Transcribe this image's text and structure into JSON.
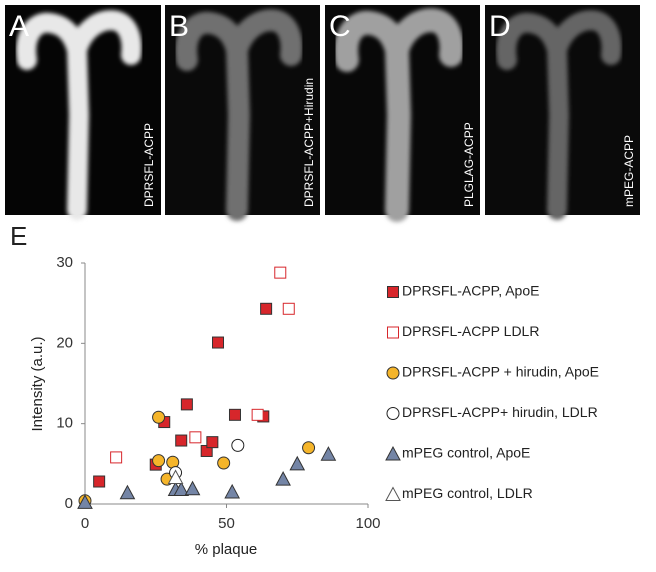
{
  "panels": [
    {
      "letter": "A",
      "label": "DPRSFL-ACPP"
    },
    {
      "letter": "B",
      "label": "DPRSFL-ACPP+Hirudin"
    },
    {
      "letter": "C",
      "label": "PLGLAG-ACPP"
    },
    {
      "letter": "D",
      "label": "mPEG-ACPP"
    }
  ],
  "chart_data": {
    "type": "scatter",
    "panel_letter": "E",
    "x_label": "% plaque",
    "y_label": "Intensity (a.u.)",
    "xlim": [
      0,
      100
    ],
    "ylim": [
      0,
      30
    ],
    "xticks": [
      0,
      50,
      100
    ],
    "yticks": [
      0,
      10,
      20,
      30
    ],
    "legend": "right",
    "grid": false,
    "series": [
      {
        "name": "DPRSFL-ACPP, ApoE",
        "marker": "square",
        "hollow": false,
        "color": "#d7262b",
        "x": [
          5,
          25,
          28,
          34,
          36,
          43,
          45,
          47,
          53,
          63,
          64
        ],
        "values": [
          2.8,
          4.9,
          10.2,
          7.9,
          12.4,
          6.6,
          7.7,
          20.1,
          11.1,
          10.9,
          24.3
        ]
      },
      {
        "name": "DPRSFL-ACPP LDLR",
        "marker": "square",
        "hollow": true,
        "color": "#d7262b",
        "x": [
          11,
          39,
          61,
          69,
          72
        ],
        "values": [
          5.8,
          8.3,
          11.1,
          28.8,
          24.3
        ]
      },
      {
        "name": "DPRSFL-ACPP + hirudin, ApoE",
        "marker": "circle",
        "hollow": false,
        "color": "#f5b52a",
        "x": [
          0,
          26,
          26,
          29,
          31,
          49,
          79
        ],
        "values": [
          0.4,
          10.8,
          5.4,
          3.1,
          5.2,
          5.1,
          7.0
        ]
      },
      {
        "name": "DPRSFL-ACPP+ hirudin, LDLR",
        "marker": "circle",
        "hollow": true,
        "color": "#222222",
        "x": [
          32,
          54
        ],
        "values": [
          3.9,
          7.3
        ]
      },
      {
        "name": "mPEG control, ApoE",
        "marker": "triangle",
        "hollow": false,
        "color": "#7485a6",
        "x": [
          0,
          15,
          32,
          34,
          38,
          52,
          70,
          75,
          86
        ],
        "values": [
          0.2,
          1.4,
          1.8,
          1.8,
          1.9,
          1.5,
          3.1,
          5.0,
          6.2
        ]
      },
      {
        "name": "mPEG control, LDLR",
        "marker": "triangle",
        "hollow": true,
        "color": "#555555",
        "x": [
          32
        ],
        "values": [
          3.3
        ]
      }
    ]
  }
}
